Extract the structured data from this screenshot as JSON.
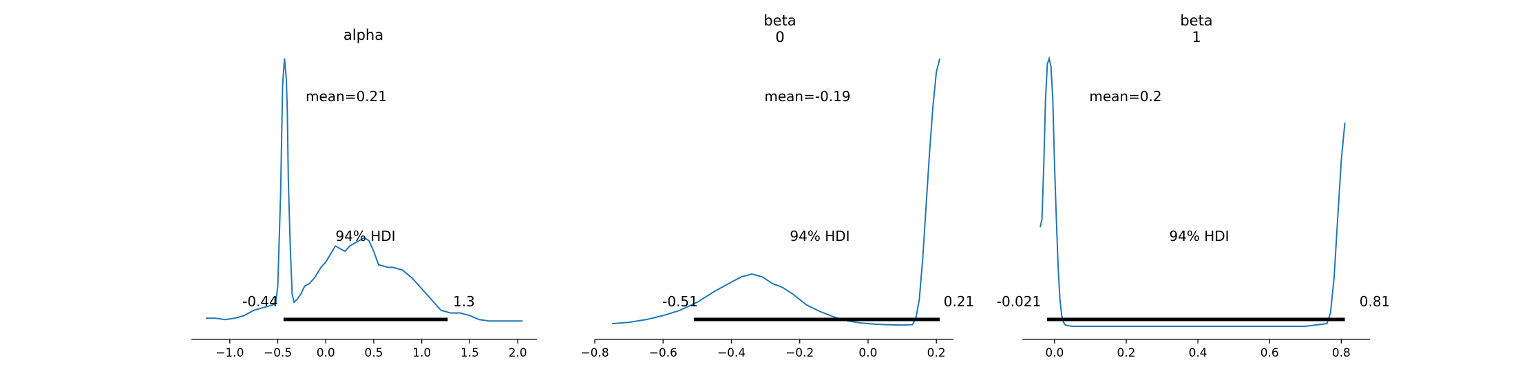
{
  "chart_data": [
    {
      "type": "line",
      "title": "alpha",
      "mean_label": "mean=0.21",
      "hdi_label": "94% HDI",
      "hdi_low_label": "-0.44",
      "hdi_high_label": "1.3",
      "hdi": [
        -0.44,
        1.27
      ],
      "xlim": [
        -1.4,
        2.2
      ],
      "ylim": [
        0,
        1.0
      ],
      "xticks": [
        -1.0,
        -0.5,
        0.0,
        0.5,
        1.0,
        1.5,
        2.0
      ],
      "xtick_labels": [
        "−1.0",
        "−0.5",
        "0.0",
        "0.5",
        "1.0",
        "1.5",
        "2.0"
      ],
      "x": [
        -1.25,
        -1.15,
        -1.05,
        -0.95,
        -0.85,
        -0.75,
        -0.65,
        -0.55,
        -0.52,
        -0.5,
        -0.47,
        -0.45,
        -0.43,
        -0.41,
        -0.4,
        -0.39,
        -0.37,
        -0.35,
        -0.33,
        -0.3,
        -0.26,
        -0.22,
        -0.17,
        -0.12,
        -0.05,
        0.0,
        0.05,
        0.1,
        0.15,
        0.2,
        0.25,
        0.3,
        0.35,
        0.4,
        0.45,
        0.5,
        0.55,
        0.6,
        0.65,
        0.7,
        0.8,
        0.9,
        1.0,
        1.1,
        1.2,
        1.3,
        1.4,
        1.5,
        1.6,
        1.7,
        1.8,
        1.9,
        2.05
      ],
      "y": [
        0.03,
        0.03,
        0.025,
        0.03,
        0.04,
        0.06,
        0.07,
        0.08,
        0.09,
        0.15,
        0.5,
        0.9,
        1.0,
        0.92,
        0.8,
        0.55,
        0.3,
        0.12,
        0.09,
        0.1,
        0.12,
        0.15,
        0.16,
        0.18,
        0.22,
        0.24,
        0.27,
        0.3,
        0.29,
        0.28,
        0.3,
        0.31,
        0.32,
        0.33,
        0.32,
        0.28,
        0.23,
        0.225,
        0.22,
        0.22,
        0.21,
        0.18,
        0.14,
        0.1,
        0.06,
        0.05,
        0.05,
        0.04,
        0.025,
        0.02,
        0.02,
        0.02,
        0.02
      ]
    },
    {
      "type": "line",
      "title": "beta",
      "subtitle": "0",
      "mean_label": "mean=-0.19",
      "hdi_label": "94% HDI",
      "hdi_low_label": "-0.51",
      "hdi_high_label": "0.21",
      "hdi": [
        -0.51,
        0.21
      ],
      "xlim": [
        -0.8,
        0.25
      ],
      "ylim": [
        0,
        1.0
      ],
      "xticks": [
        -0.8,
        -0.6,
        -0.4,
        -0.2,
        0.0,
        0.2
      ],
      "xtick_labels": [
        "−0.8",
        "−0.6",
        "−0.4",
        "−0.2",
        "0.0",
        "0.2"
      ],
      "x": [
        -0.75,
        -0.7,
        -0.65,
        -0.6,
        -0.55,
        -0.5,
        -0.45,
        -0.4,
        -0.37,
        -0.34,
        -0.31,
        -0.28,
        -0.25,
        -0.22,
        -0.18,
        -0.14,
        -0.1,
        -0.06,
        -0.02,
        0.02,
        0.06,
        0.1,
        0.13,
        0.14,
        0.15,
        0.16,
        0.17,
        0.18,
        0.19,
        0.2,
        0.21
      ],
      "y": [
        0.01,
        0.015,
        0.025,
        0.04,
        0.06,
        0.09,
        0.13,
        0.165,
        0.185,
        0.195,
        0.185,
        0.16,
        0.145,
        0.12,
        0.08,
        0.055,
        0.035,
        0.02,
        0.012,
        0.008,
        0.006,
        0.005,
        0.006,
        0.03,
        0.1,
        0.25,
        0.45,
        0.65,
        0.82,
        0.95,
        1.0
      ]
    },
    {
      "type": "line",
      "title": "beta",
      "subtitle": "1",
      "mean_label": "mean=0.2",
      "hdi_label": "94% HDI",
      "hdi_low_label": "-0.021",
      "hdi_high_label": "0.81",
      "hdi": [
        -0.021,
        0.81
      ],
      "xlim": [
        -0.09,
        0.88
      ],
      "ylim": [
        0,
        1.0
      ],
      "xticks": [
        0.0,
        0.2,
        0.4,
        0.6,
        0.8
      ],
      "xtick_labels": [
        "0.0",
        "0.2",
        "0.4",
        "0.6",
        "0.8"
      ],
      "x": [
        -0.04,
        -0.035,
        -0.03,
        -0.025,
        -0.02,
        -0.015,
        -0.01,
        -0.005,
        0.0,
        0.005,
        0.01,
        0.015,
        0.02,
        0.025,
        0.03,
        0.04,
        0.05,
        0.1,
        0.2,
        0.3,
        0.4,
        0.5,
        0.6,
        0.7,
        0.76,
        0.77,
        0.78,
        0.79,
        0.8,
        0.81
      ],
      "y": [
        0.37,
        0.4,
        0.6,
        0.85,
        0.98,
        1.0,
        0.97,
        0.85,
        0.6,
        0.4,
        0.22,
        0.1,
        0.04,
        0.015,
        0.005,
        0.002,
        0.0,
        0.0,
        0.0,
        0.0,
        0.0,
        0.0,
        0.0,
        0.0,
        0.01,
        0.05,
        0.18,
        0.4,
        0.62,
        0.76
      ]
    }
  ]
}
